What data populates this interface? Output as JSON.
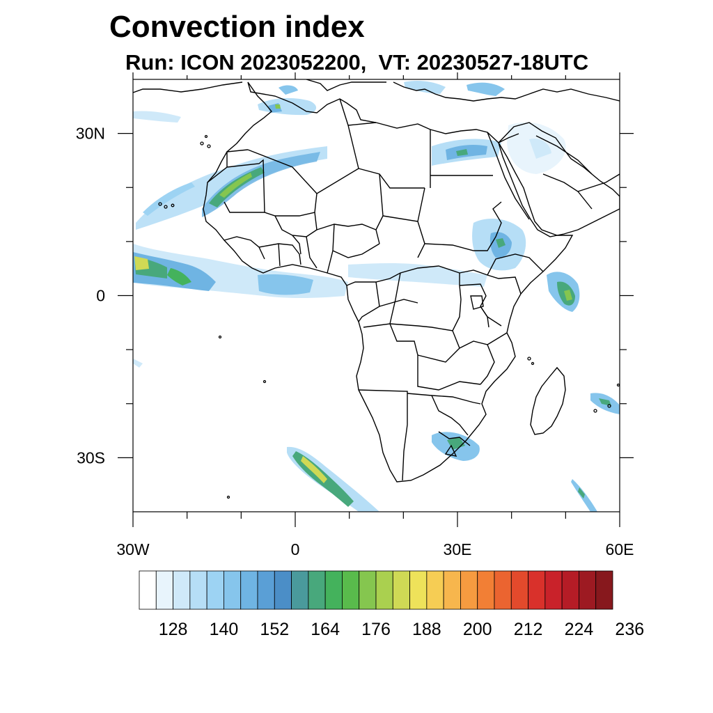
{
  "title": "Convection index",
  "subtitle": "Run: ICON 2023052200,  VT: 20230527-18UTC",
  "map": {
    "lon_range": [
      -30,
      60
    ],
    "lat_range": [
      -40,
      40
    ],
    "x_ticks": [
      {
        "lon": -30,
        "label": "30W"
      },
      {
        "lon": 0,
        "label": "0"
      },
      {
        "lon": 30,
        "label": "30E"
      },
      {
        "lon": 60,
        "label": "60E"
      }
    ],
    "y_ticks": [
      {
        "lat": 30,
        "label": "30N"
      },
      {
        "lat": 0,
        "label": "0"
      },
      {
        "lat": -30,
        "label": "30S"
      }
    ],
    "minor_x_lons": [
      -20,
      -10,
      10,
      20,
      40,
      50
    ],
    "minor_y_lats": [
      20,
      10,
      -10,
      -20
    ]
  },
  "colorbar": {
    "colors": [
      "#ffffff",
      "#e8f4fc",
      "#cfe9f9",
      "#b6def6",
      "#9dd3f3",
      "#86c5ec",
      "#6fb4e3",
      "#5a9fd6",
      "#4b8ec7",
      "#4a9a9c",
      "#48a87c",
      "#44b25c",
      "#59bb4c",
      "#85c64f",
      "#aad04f",
      "#cfd955",
      "#eee25a",
      "#f6cd54",
      "#f7b64d",
      "#f69b40",
      "#f27f35",
      "#eb6430",
      "#e34a2c",
      "#d9312b",
      "#c9222a",
      "#b51c26",
      "#9d1a22",
      "#87181d"
    ],
    "labels": [
      "128",
      "140",
      "152",
      "164",
      "176",
      "188",
      "200",
      "212",
      "224",
      "236"
    ]
  }
}
